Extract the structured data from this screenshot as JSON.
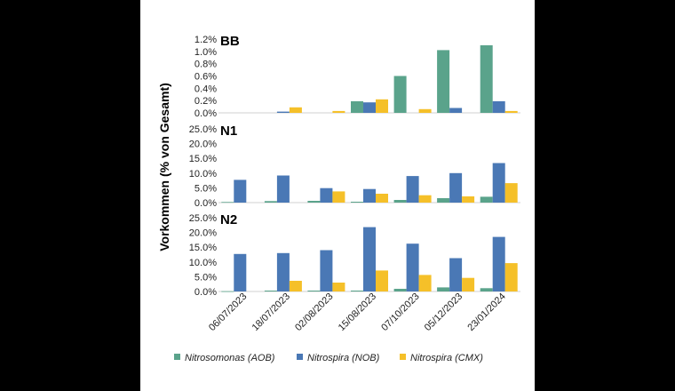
{
  "chart_data": {
    "type": "bar",
    "ylabel": "Vorkommen (% von Gesamt)",
    "categories": [
      "06/07/2023",
      "18/07/2023",
      "02/08/2023",
      "15/08/2023",
      "07/10/2023",
      "05/12/2023",
      "23/01/2024"
    ],
    "series_colors": [
      "#5aa38b",
      "#4a78b5",
      "#f5c029"
    ],
    "legend": [
      "Nitrosomonas (AOB)",
      "Nitrospira (NOB)",
      "Nitrospira (CMX)"
    ],
    "panels": [
      {
        "title": "BB",
        "ylim": [
          0,
          1.2
        ],
        "yticks": [
          0.0,
          0.2,
          0.4,
          0.6,
          0.8,
          1.0,
          1.2
        ],
        "yticklabels": [
          "0.0%",
          "0.2%",
          "0.4%",
          "0.6%",
          "0.8%",
          "1.0%",
          "1.2%"
        ],
        "series": [
          {
            "name": "Nitrosomonas (AOB)",
            "values": [
              0,
              0,
              0,
              0.19,
              0.6,
              1.02,
              1.1
            ]
          },
          {
            "name": "Nitrospira (NOB)",
            "values": [
              0,
              0.02,
              0,
              0.17,
              0,
              0.08,
              0.19
            ]
          },
          {
            "name": "Nitrospira (CMX)",
            "values": [
              0,
              0.09,
              0.03,
              0.22,
              0.06,
              0,
              0.03
            ]
          }
        ]
      },
      {
        "title": "N1",
        "ylim": [
          0,
          25
        ],
        "yticks": [
          0,
          5,
          10,
          15,
          20,
          25
        ],
        "yticklabels": [
          "0.0%",
          "5.0%",
          "10.0%",
          "15.0%",
          "20.0%",
          "25.0%"
        ],
        "series": [
          {
            "name": "Nitrosomonas (AOB)",
            "values": [
              0.2,
              0.5,
              0.6,
              0.3,
              0.9,
              1.5,
              2.0
            ]
          },
          {
            "name": "Nitrospira (NOB)",
            "values": [
              7.7,
              9.2,
              4.9,
              4.6,
              9.0,
              10.0,
              13.4
            ]
          },
          {
            "name": "Nitrospira (CMX)",
            "values": [
              0,
              0,
              3.8,
              3.0,
              2.5,
              2.1,
              6.6
            ]
          }
        ]
      },
      {
        "title": "N2",
        "ylim": [
          0,
          25
        ],
        "yticks": [
          0,
          5,
          10,
          15,
          20,
          25
        ],
        "yticklabels": [
          "0.0%",
          "5.0%",
          "10.0%",
          "15.0%",
          "20.0%",
          "25.0%"
        ],
        "series": [
          {
            "name": "Nitrosomonas (AOB)",
            "values": [
              0.1,
              0.3,
              0.3,
              0.3,
              0.9,
              1.4,
              1.1
            ]
          },
          {
            "name": "Nitrospira (NOB)",
            "values": [
              12.7,
              13.0,
              14.0,
              21.8,
              16.2,
              11.3,
              18.5
            ]
          },
          {
            "name": "Nitrospira (CMX)",
            "values": [
              0,
              3.6,
              3.0,
              7.1,
              5.6,
              4.6,
              9.6
            ]
          }
        ]
      }
    ]
  }
}
